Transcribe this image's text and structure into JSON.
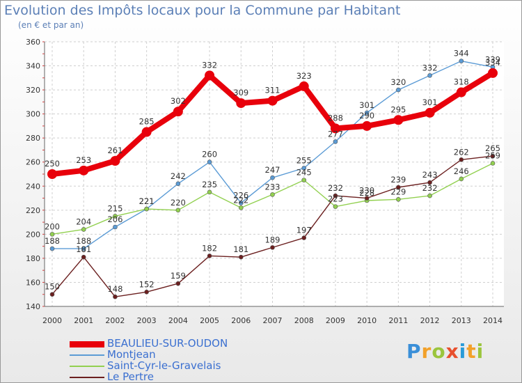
{
  "title": "Evolution des Impôts locaux pour la Commune par Habitant",
  "subtitle": "(en € et par an)",
  "logo": {
    "letters": [
      "P",
      "r",
      "o",
      "x",
      "i",
      "t",
      "i"
    ],
    "colors": [
      "#3a8fd8",
      "#f2a12a",
      "#9bc53d",
      "#e8502e",
      "#2a9bd8",
      "#f2a12a",
      "#9bc53d"
    ]
  },
  "chart_data": {
    "type": "line",
    "title": "Evolution des Impôts locaux pour la Commune par Habitant",
    "subtitle": "(en € et par an)",
    "x": [
      "2000",
      "2001",
      "2002",
      "2003",
      "2004",
      "2005",
      "2006",
      "2007",
      "2008",
      "2009",
      "2010",
      "2011",
      "2012",
      "2013",
      "2014"
    ],
    "ylim": [
      140,
      360
    ],
    "yticks": [
      "140",
      "160",
      "180",
      "200",
      "220",
      "240",
      "260",
      "280",
      "300",
      "320",
      "340",
      "360"
    ],
    "grid": true,
    "legend_position": "bottom-left",
    "series": [
      {
        "name": "BEAULIEU-SUR-OUDON",
        "color": "#e8000b",
        "values": [
          250,
          253,
          261,
          285,
          302,
          332,
          309,
          311,
          323,
          288,
          290,
          295,
          301,
          318,
          334
        ]
      },
      {
        "name": "Montjean",
        "color": "#5b9bd5",
        "values": [
          188,
          188,
          206,
          221,
          242,
          260,
          226,
          247,
          255,
          277,
          301,
          320,
          332,
          344,
          339
        ]
      },
      {
        "name": "Saint-Cyr-le-Gravelais",
        "color": "#92d050",
        "values": [
          200,
          204,
          215,
          221,
          220,
          235,
          222,
          233,
          245,
          223,
          228,
          229,
          232,
          246,
          259
        ]
      },
      {
        "name": "Le Pertre",
        "color": "#6b1f1f",
        "values": [
          150,
          181,
          148,
          152,
          159,
          182,
          181,
          189,
          197,
          232,
          230,
          239,
          243,
          262,
          265
        ]
      }
    ]
  }
}
